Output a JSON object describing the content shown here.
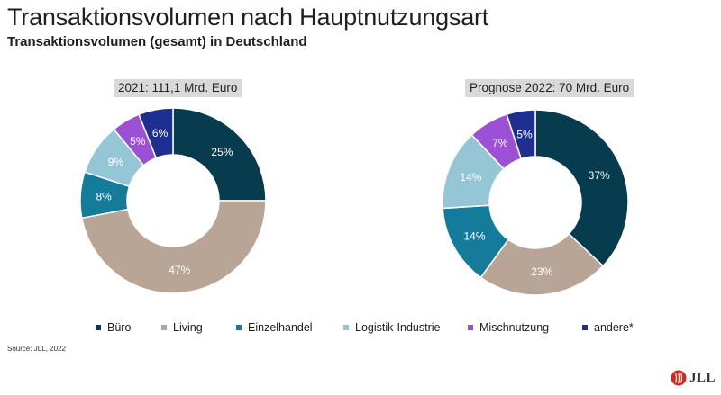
{
  "title": "Transaktionsvolumen nach Hauptnutzungsart",
  "subtitle": "Transaktionsvolumen (gesamt) in Deutschland",
  "source": "Source: JLL, 2022",
  "logo_text": "JLL",
  "colors": {
    "Büro": "#073c4f",
    "Living": "#b8a595",
    "Einzelhandel": "#157b9b",
    "Logistik-Industrie": "#94c6d6",
    "Mischnutzung": "#9b50d6",
    "andere*": "#1f2f91",
    "logo": "#d9261c"
  },
  "chart_data": [
    {
      "type": "pie",
      "title": "2021: 111,1 Mrd. Euro",
      "categories": [
        "Büro",
        "Living",
        "Einzelhandel",
        "Logistik-Industrie",
        "Mischnutzung",
        "andere*"
      ],
      "values": [
        25,
        47,
        8,
        9,
        5,
        6
      ],
      "data_labels": [
        "25%",
        "47%",
        "8%",
        "9%",
        "5%",
        "6%"
      ]
    },
    {
      "type": "pie",
      "title": "Prognose 2022: 70 Mrd. Euro",
      "categories": [
        "Büro",
        "Living",
        "Einzelhandel",
        "Logistik-Industrie",
        "Mischnutzung",
        "andere*"
      ],
      "values": [
        37,
        23,
        14,
        14,
        7,
        5
      ],
      "data_labels": [
        "37%",
        "23%",
        "14%",
        "14%",
        "7%",
        "5%"
      ]
    }
  ],
  "legend": [
    "Büro",
    "Living",
    "Einzelhandel",
    "Logistik-Industrie",
    "Mischnutzung",
    "andere*"
  ]
}
